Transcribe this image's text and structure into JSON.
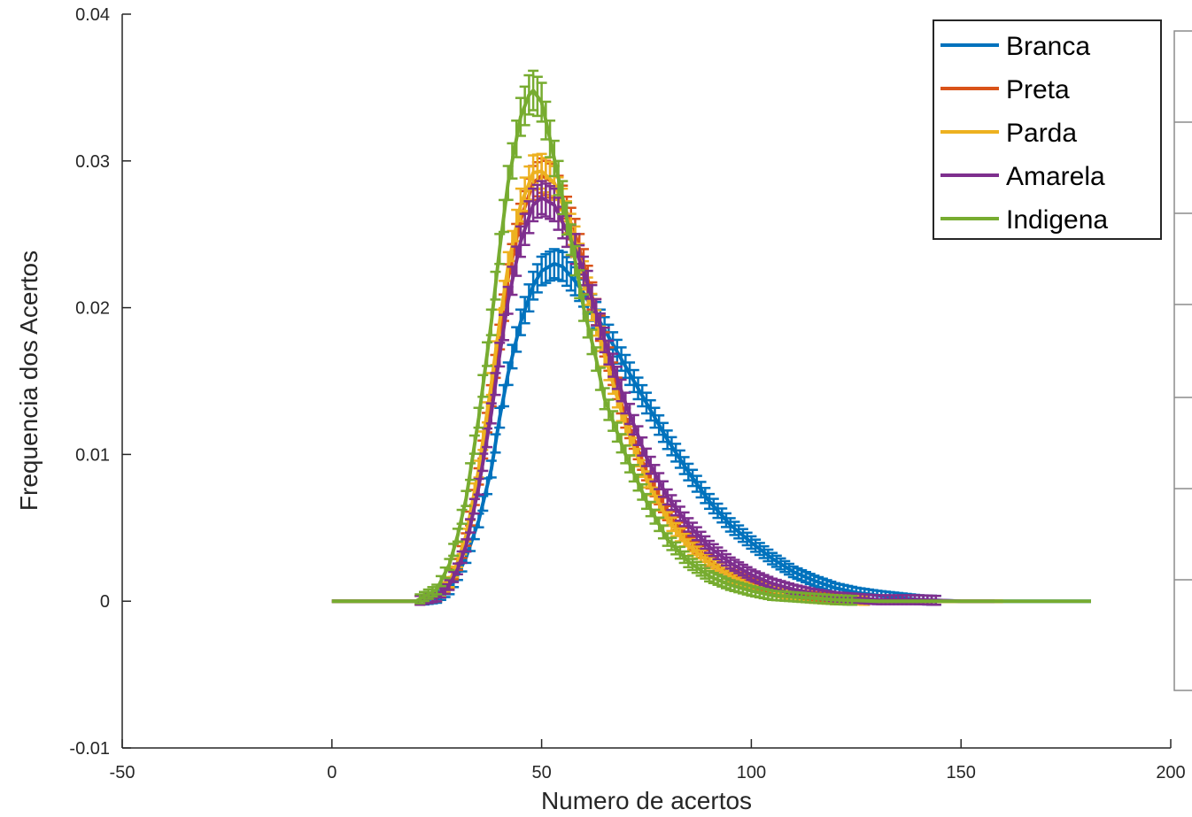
{
  "chart_data": {
    "type": "line",
    "title": "",
    "xlabel": "Numero de acertos",
    "ylabel": "Frequencia dos Acertos",
    "xlim": [
      -50,
      200
    ],
    "ylim": [
      -0.01,
      0.04
    ],
    "xticks": [
      -50,
      0,
      50,
      100,
      150,
      200
    ],
    "xtick_labels": [
      "-50",
      "0",
      "50",
      "100",
      "150",
      "200"
    ],
    "yticks": [
      -0.01,
      0,
      0.01,
      0.02,
      0.03,
      0.04
    ],
    "ytick_labels": [
      "-0.01",
      "0",
      "0.01",
      "0.02",
      "0.03",
      "0.04"
    ],
    "grid": false,
    "legend_position": "top-right",
    "error_bars": true,
    "series": [
      {
        "name": "Branca",
        "color": "#0072BD",
        "x": [
          0,
          10,
          20,
          25,
          28,
          30,
          32,
          35,
          38,
          40,
          42,
          45,
          48,
          50,
          53,
          55,
          58,
          60,
          65,
          70,
          75,
          80,
          85,
          90,
          95,
          100,
          105,
          110,
          115,
          120,
          125,
          130,
          140,
          150,
          160,
          170,
          181
        ],
        "y": [
          0,
          0,
          0,
          0.0002,
          0.0008,
          0.0018,
          0.003,
          0.0055,
          0.009,
          0.0125,
          0.0155,
          0.019,
          0.0215,
          0.0225,
          0.023,
          0.0228,
          0.0218,
          0.021,
          0.0185,
          0.016,
          0.0135,
          0.011,
          0.0088,
          0.0068,
          0.0052,
          0.004,
          0.0029,
          0.002,
          0.0014,
          0.0009,
          0.0006,
          0.0004,
          0.0001,
          0,
          0,
          0,
          0
        ]
      },
      {
        "name": "Preta",
        "color": "#D95319",
        "x": [
          0,
          10,
          20,
          25,
          28,
          30,
          32,
          35,
          38,
          40,
          42,
          45,
          48,
          50,
          53,
          55,
          58,
          60,
          65,
          70,
          75,
          80,
          85,
          90,
          95,
          100,
          105,
          110,
          115,
          120,
          125,
          130,
          140,
          150,
          160
        ],
        "y": [
          0,
          0,
          0,
          0.0003,
          0.0012,
          0.0025,
          0.0042,
          0.0085,
          0.014,
          0.018,
          0.022,
          0.026,
          0.0285,
          0.029,
          0.0285,
          0.0272,
          0.025,
          0.023,
          0.0175,
          0.0125,
          0.0088,
          0.006,
          0.0042,
          0.0028,
          0.0019,
          0.0012,
          0.0008,
          0.0005,
          0.0003,
          0.0002,
          0.0001,
          0,
          0,
          0,
          0
        ]
      },
      {
        "name": "Parda",
        "color": "#EDB120",
        "x": [
          0,
          10,
          20,
          25,
          28,
          30,
          32,
          35,
          38,
          40,
          42,
          45,
          48,
          50,
          53,
          55,
          58,
          60,
          65,
          70,
          75,
          80,
          85,
          90,
          95,
          100,
          105,
          110,
          115,
          120,
          125,
          130,
          140,
          150,
          160
        ],
        "y": [
          0,
          0,
          0,
          0.0003,
          0.0013,
          0.0027,
          0.0045,
          0.009,
          0.0148,
          0.019,
          0.0228,
          0.027,
          0.0292,
          0.0293,
          0.0285,
          0.027,
          0.0245,
          0.0222,
          0.0168,
          0.012,
          0.0083,
          0.0056,
          0.0038,
          0.0026,
          0.0017,
          0.0011,
          0.0007,
          0.0004,
          0.0002,
          0.0001,
          0.0001,
          0,
          0,
          0,
          0
        ]
      },
      {
        "name": "Amarela",
        "color": "#7E2F8E",
        "x": [
          0,
          10,
          20,
          25,
          28,
          30,
          32,
          35,
          38,
          40,
          42,
          45,
          48,
          50,
          53,
          55,
          58,
          60,
          65,
          70,
          75,
          80,
          85,
          90,
          95,
          100,
          105,
          110,
          115,
          120,
          125,
          130,
          140,
          150,
          158
        ],
        "y": [
          0,
          0,
          0,
          0.0003,
          0.0011,
          0.0022,
          0.0038,
          0.0078,
          0.0128,
          0.0168,
          0.0205,
          0.0245,
          0.027,
          0.0275,
          0.027,
          0.0258,
          0.024,
          0.0225,
          0.0178,
          0.0135,
          0.0098,
          0.0071,
          0.0052,
          0.0037,
          0.0026,
          0.0018,
          0.0012,
          0.0008,
          0.0005,
          0.0003,
          0.0002,
          0.0001,
          0.0001,
          0,
          0
        ]
      },
      {
        "name": "Indigena",
        "color": "#77AC30",
        "x": [
          0,
          10,
          20,
          25,
          28,
          30,
          32,
          35,
          38,
          40,
          42,
          45,
          47,
          48,
          50,
          52,
          55,
          58,
          60,
          63,
          65,
          70,
          75,
          80,
          85,
          90,
          95,
          100,
          105,
          110,
          115,
          120,
          130,
          140,
          150,
          160,
          170,
          181
        ],
        "y": [
          0,
          0,
          0,
          0.0008,
          0.0025,
          0.0045,
          0.007,
          0.0125,
          0.019,
          0.024,
          0.0285,
          0.033,
          0.0345,
          0.0348,
          0.034,
          0.0315,
          0.0275,
          0.0232,
          0.02,
          0.0165,
          0.0138,
          0.01,
          0.0068,
          0.0042,
          0.0027,
          0.0017,
          0.0011,
          0.0007,
          0.0004,
          0.0003,
          0.0002,
          0.0001,
          0,
          0,
          0,
          0,
          0,
          0
        ]
      }
    ]
  }
}
